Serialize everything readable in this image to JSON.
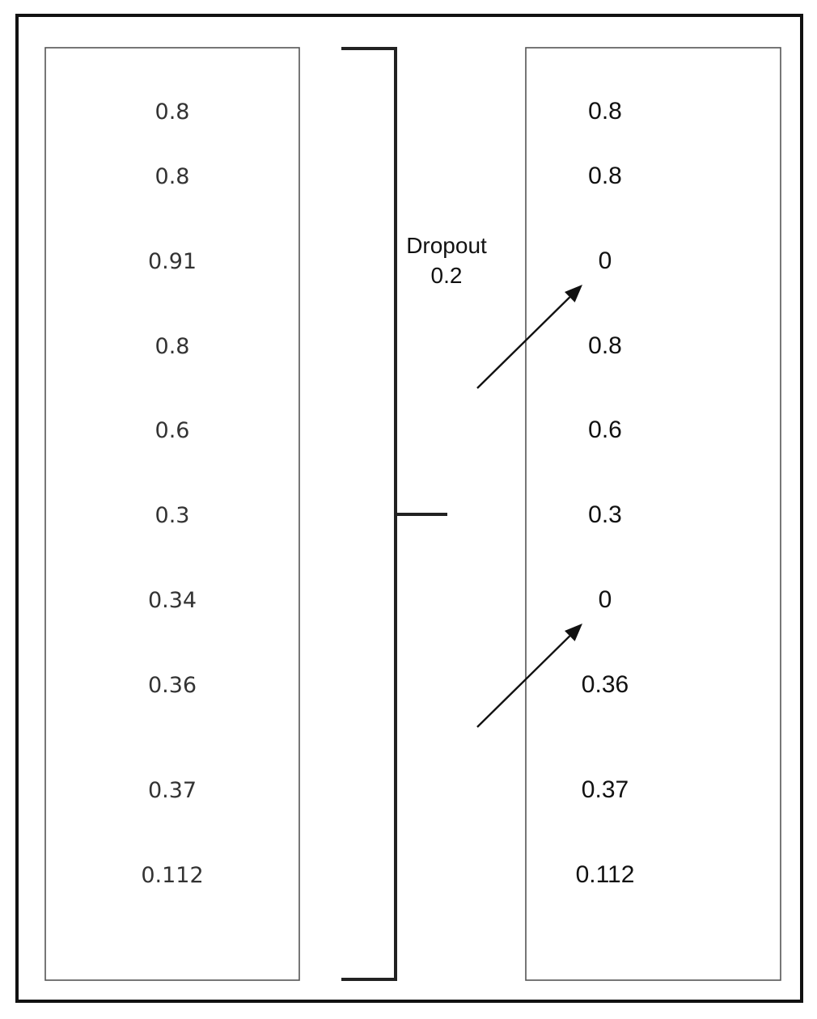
{
  "input_column": {
    "values": [
      "0.8",
      "0.8",
      "0.91",
      "0.8",
      "0.6",
      "0.3",
      "0.34",
      "0.36",
      "0.37",
      "0.112"
    ]
  },
  "output_column": {
    "values": [
      "0.8",
      "0.8",
      "0",
      "0.8",
      "0.6",
      "0.3",
      "0",
      "0.36",
      "0.37",
      "0.112"
    ]
  },
  "dropout": {
    "label_line1": "Dropout",
    "label_line2": "0.2"
  },
  "dropped_indices": [
    2,
    6
  ],
  "colors": {
    "frame": "#111111",
    "panel_border": "#555555",
    "text": "#111111"
  }
}
